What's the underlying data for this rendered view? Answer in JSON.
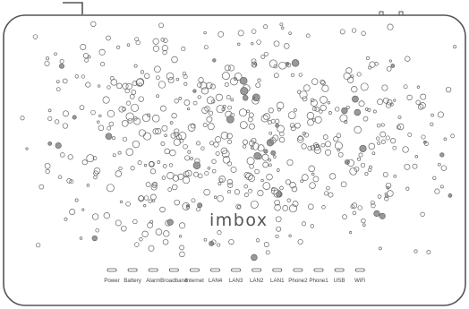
{
  "device": {
    "brand_logo": "im box",
    "body_color": "#ffffff",
    "outline_color": "#555555",
    "hole_color": "#666666"
  },
  "indicators": [
    {
      "label": "Power"
    },
    {
      "label": "Battery"
    },
    {
      "label": "Alarm"
    },
    {
      "label": "Broadband"
    },
    {
      "label": "Internet"
    },
    {
      "label": "LAN4"
    },
    {
      "label": "LAN3"
    },
    {
      "label": "LAN2"
    },
    {
      "label": "LAN1"
    },
    {
      "label": "Phone2"
    },
    {
      "label": "Phone1"
    },
    {
      "label": "USB"
    },
    {
      "label": "WiFi"
    }
  ]
}
